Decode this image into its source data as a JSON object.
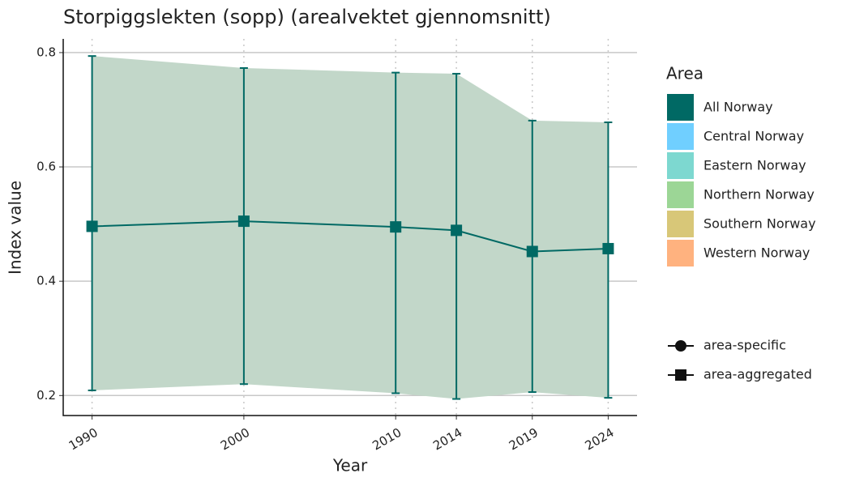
{
  "chart_data": {
    "type": "line",
    "title": "Storpiggslekten (sopp) (arealvektet gjennomsnitt)",
    "x_label": "Year",
    "y_label": "Index value",
    "x": [
      1990,
      2000,
      2010,
      2014,
      2019,
      2024
    ],
    "series": [
      {
        "name": "All Norway",
        "color": "#006964",
        "band_color": "#c2d7c9",
        "values": [
          0.496,
          0.505,
          0.495,
          0.489,
          0.452,
          0.457
        ],
        "lower": [
          0.209,
          0.22,
          0.204,
          0.194,
          0.206,
          0.196
        ],
        "upper": [
          0.794,
          0.773,
          0.765,
          0.763,
          0.681,
          0.678
        ],
        "marker": "square"
      }
    ],
    "xlim": [
      1988.1,
      2025.9
    ],
    "xticks": [
      1990,
      2000,
      2010,
      2014,
      2019,
      2024
    ],
    "ylim": [
      0.165,
      0.824
    ],
    "yticks": [
      0.2,
      0.4,
      0.6,
      0.8
    ],
    "grid": true,
    "legend_title": "Area",
    "legend": [
      {
        "name": "All Norway",
        "color": "#006964"
      },
      {
        "name": "Central Norway",
        "color": "#70cfff"
      },
      {
        "name": "Eastern Norway",
        "color": "#7dd8d0"
      },
      {
        "name": "Northern Norway",
        "color": "#9cd696"
      },
      {
        "name": "Southern Norway",
        "color": "#d8c778"
      },
      {
        "name": "Western Norway",
        "color": "#ffb27f"
      }
    ],
    "shape_legend": [
      {
        "name": "area-specific",
        "shape": "circle"
      },
      {
        "name": "area-aggregated",
        "shape": "square"
      }
    ]
  }
}
